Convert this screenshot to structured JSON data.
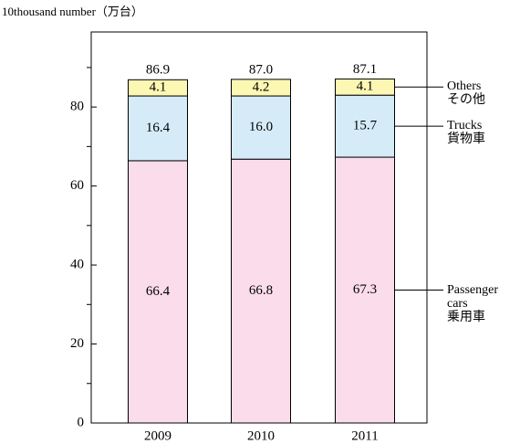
{
  "chart_data": {
    "type": "stacked_bar",
    "y_label": "10thousand number（万台）",
    "categories": [
      "2009",
      "2010",
      "2011"
    ],
    "series": [
      {
        "name": "Passenger\ncars\n乗用車",
        "color": "#fadcea",
        "values": [
          66.4,
          66.8,
          67.3
        ]
      },
      {
        "name": "Trucks\n貨物車",
        "color": "#d5ecf8",
        "values": [
          16.4,
          16.0,
          15.7
        ],
        "value_labels": [
          "16.4",
          "16.0",
          "15.7"
        ]
      },
      {
        "name": "Others\nその他",
        "color": "#fdf7b4",
        "values": [
          4.1,
          4.2,
          4.1
        ]
      }
    ],
    "totals": [
      86.9,
      87.0,
      87.1
    ],
    "total_labels": [
      "86.9",
      "87.0",
      "87.1"
    ],
    "ylim": [
      0,
      99
    ],
    "yticks": [
      0,
      20,
      40,
      60,
      80
    ],
    "yminor_ticks": [
      10,
      30,
      50,
      70,
      90
    ],
    "grid": false
  }
}
